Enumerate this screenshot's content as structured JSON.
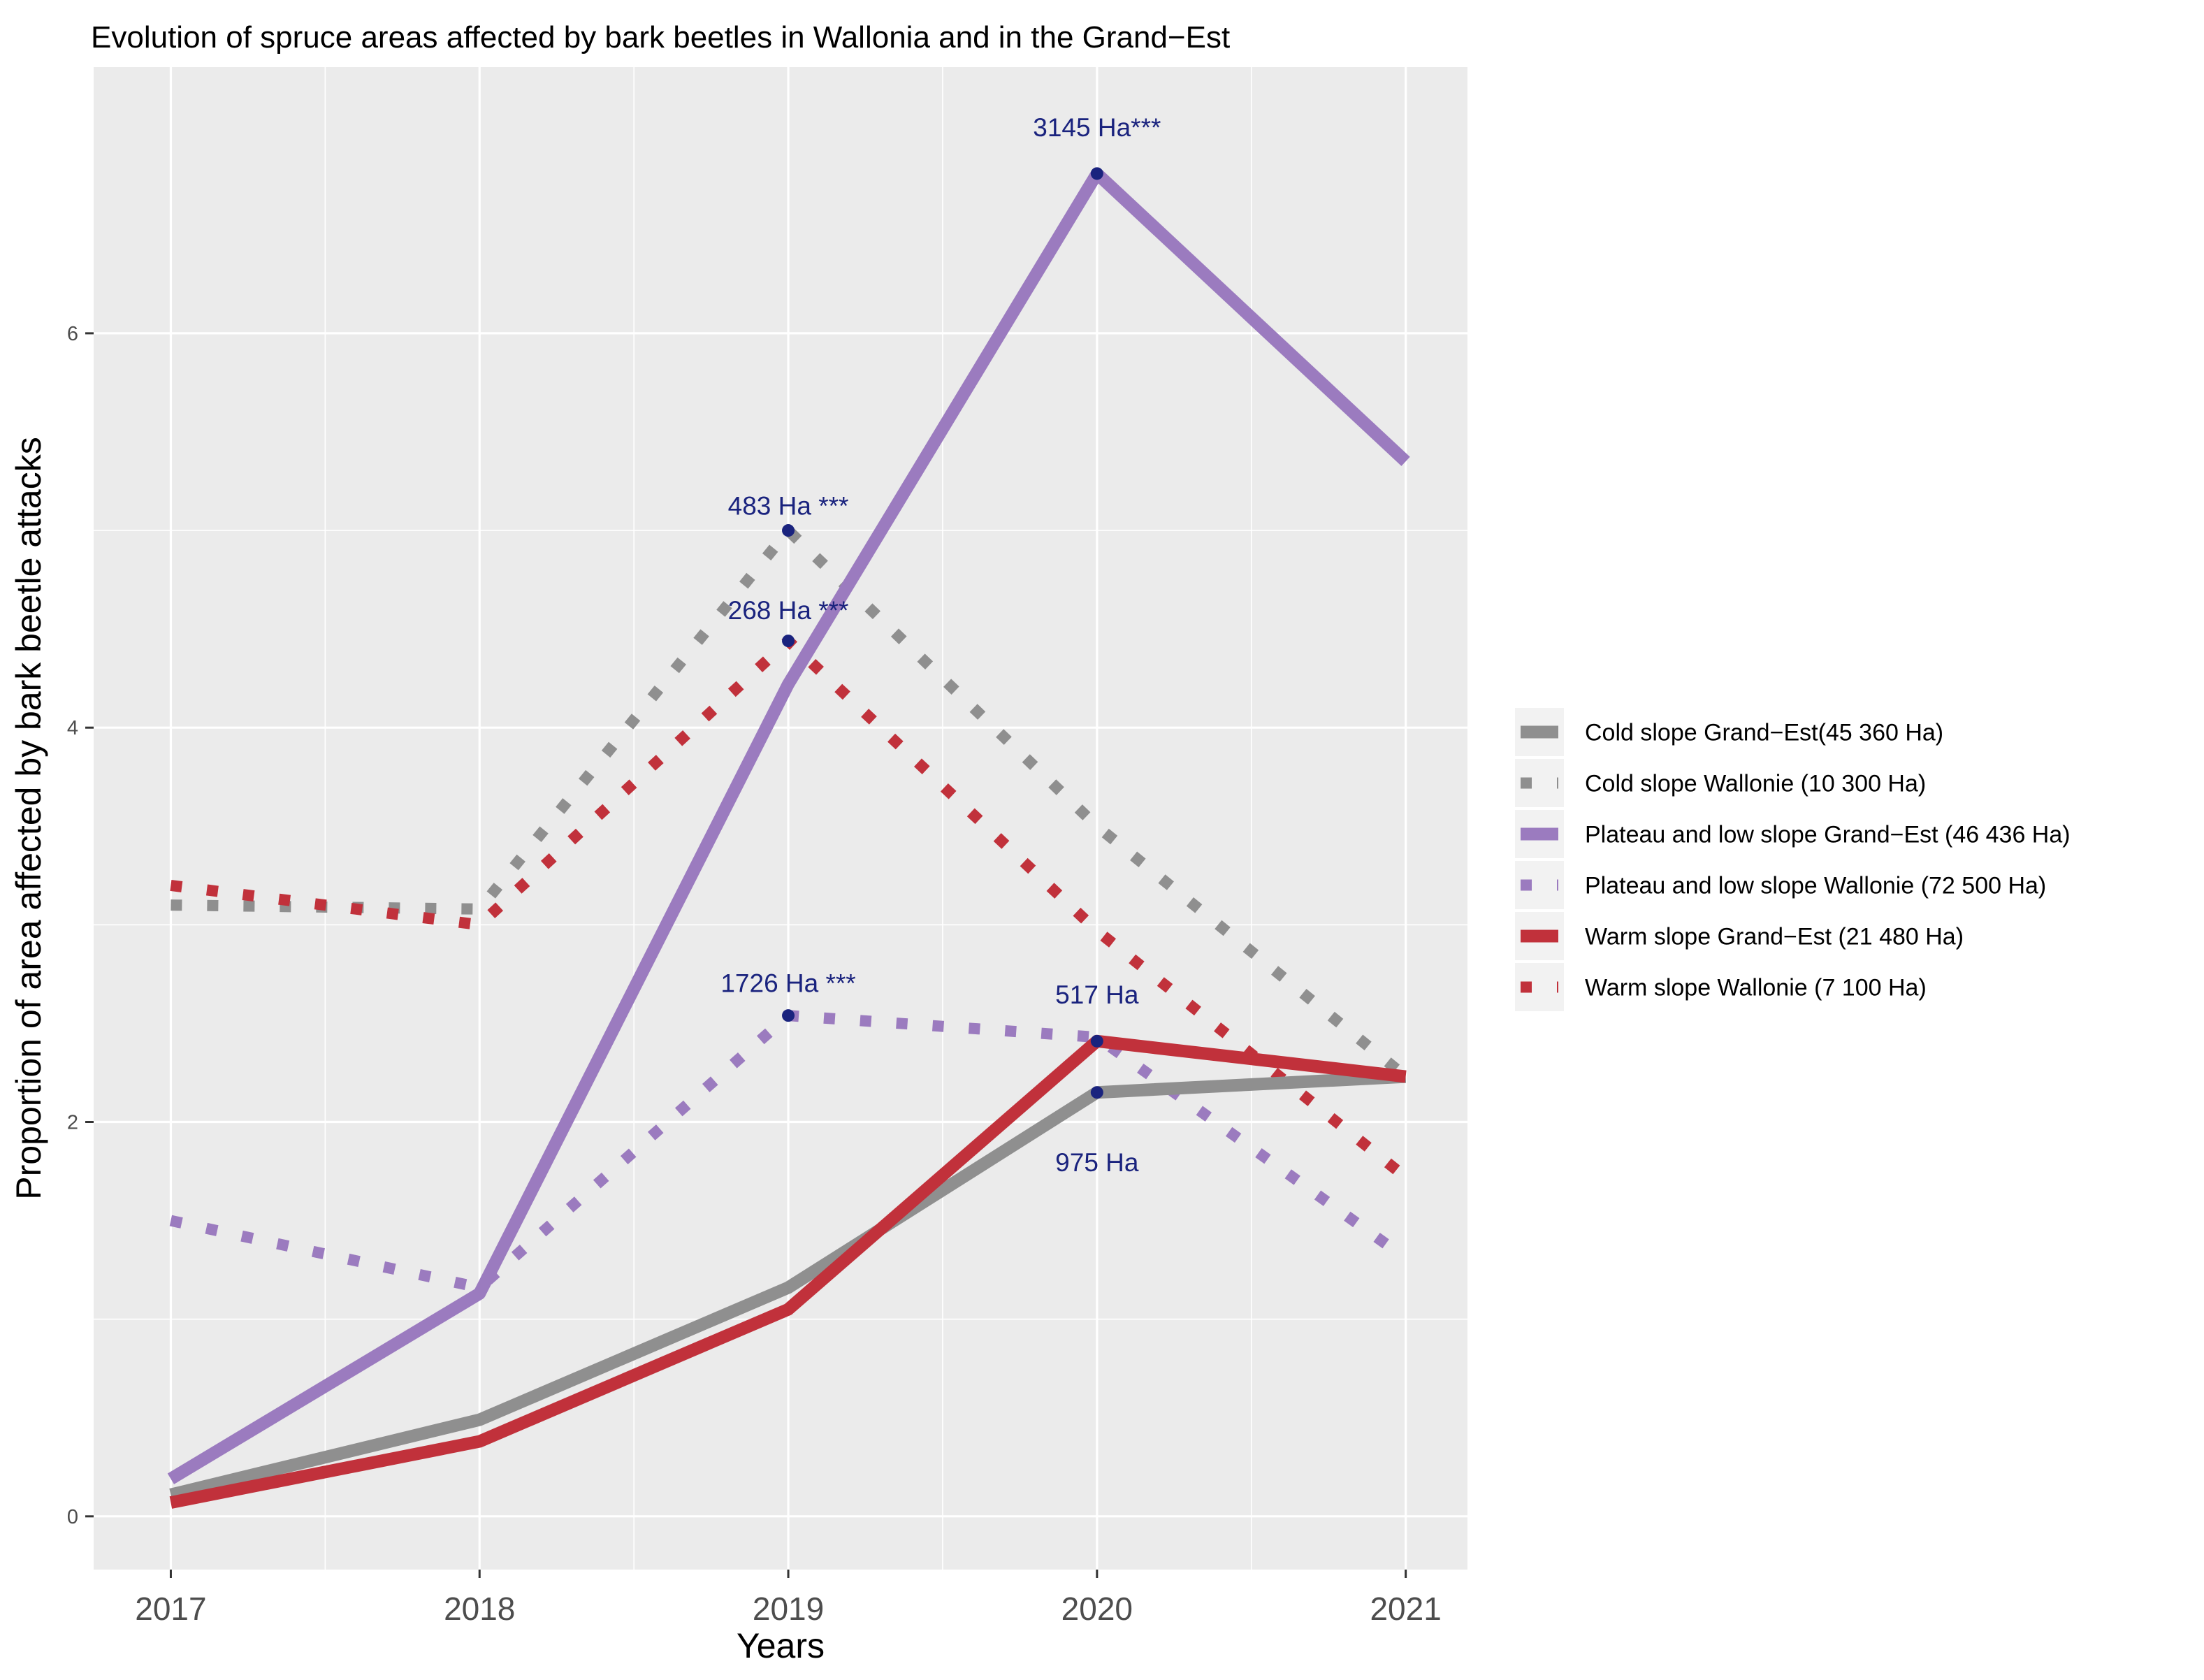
{
  "chart_data": {
    "type": "line",
    "title": "Evolution of spruce areas affected by bark beetles in Wallonia and in the Grand−Est",
    "xlabel": "Years",
    "ylabel": "Proportion of area affected by bark beetle attacks",
    "x": [
      2017,
      2018,
      2019,
      2020,
      2021
    ],
    "xticks": [
      "2017",
      "2018",
      "2019",
      "2020",
      "2021"
    ],
    "xlim": [
      2016.75,
      2021.2
    ],
    "yticks": [
      "0",
      "2",
      "4",
      "6"
    ],
    "ylim": [
      -0.27,
      7.35
    ],
    "grid": true,
    "legend_position": "right",
    "colors": {
      "panel": "#ebebeb",
      "grid": "#ffffff",
      "annotation": "#1a237e"
    },
    "series": [
      {
        "name": "Cold slope Grand−Est(45 360 Ha)",
        "values": [
          0.11,
          0.49,
          1.16,
          2.15,
          2.23
        ],
        "color": "#8f8f8f",
        "style": "solid"
      },
      {
        "name": "Cold slope Wallonie (10 300 Ha)",
        "values": [
          3.1,
          3.08,
          5.0,
          3.5,
          2.23
        ],
        "color": "#8f8f8f",
        "style": "dotted"
      },
      {
        "name": "Plateau and low slope Grand−Est (46 436 Ha)",
        "values": [
          0.19,
          1.13,
          4.22,
          6.81,
          5.35
        ],
        "color": "#9b7bbf",
        "style": "solid"
      },
      {
        "name": "Plateau and low slope Wallonie (72 500 Ha)",
        "values": [
          1.5,
          1.16,
          2.54,
          2.43,
          1.31
        ],
        "color": "#9b7bbf",
        "style": "dotted"
      },
      {
        "name": "Warm slope Grand−Est (21 480 Ha)",
        "values": [
          0.07,
          0.38,
          1.05,
          2.41,
          2.23
        ],
        "color": "#c1313b",
        "style": "solid"
      },
      {
        "name": "Warm slope Wallonie (7 100 Ha)",
        "values": [
          3.2,
          3.0,
          4.44,
          2.97,
          1.72
        ],
        "color": "#c1313b",
        "style": "dotted"
      }
    ],
    "annotations": [
      {
        "text": "3145 Ha***",
        "x": 2020,
        "y": 6.81,
        "label_y": 7.0
      },
      {
        "text": "483 Ha ***",
        "x": 2019,
        "y": 5.0,
        "label_y": 5.08
      },
      {
        "text": "268 Ha ***",
        "x": 2019,
        "y": 4.44,
        "label_y": 4.55
      },
      {
        "text": "1726 Ha ***",
        "x": 2019,
        "y": 2.54,
        "label_y": 2.66
      },
      {
        "text": "517 Ha",
        "x": 2020,
        "y": 2.41,
        "label_y": 2.6
      },
      {
        "text": "975 Ha",
        "x": 2020,
        "y": 2.15,
        "label_y": 1.75
      }
    ]
  }
}
